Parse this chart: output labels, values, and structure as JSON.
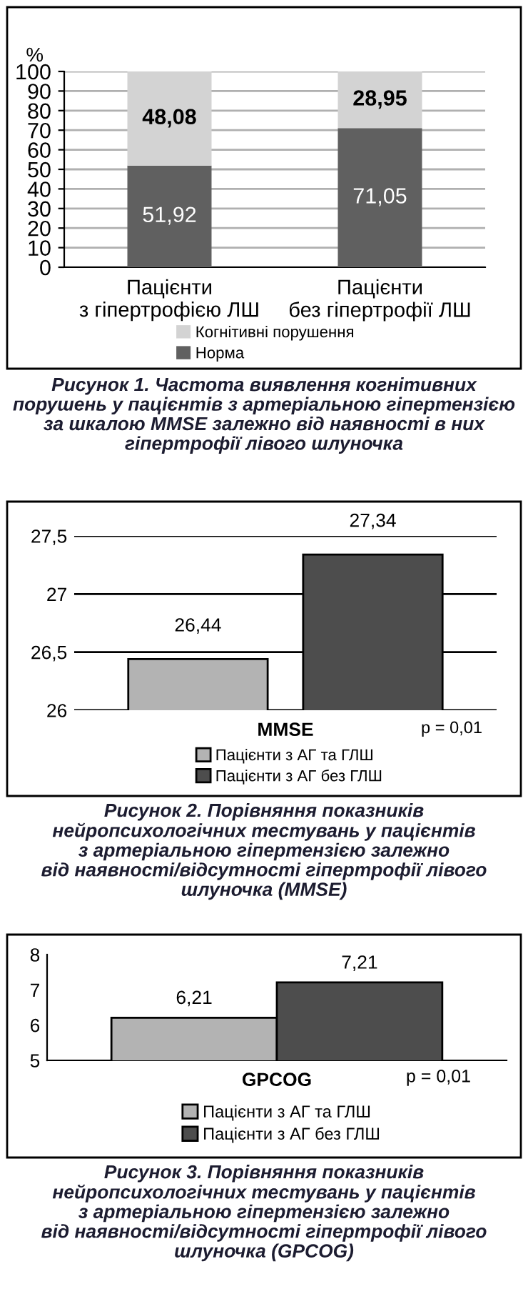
{
  "chart_data": [
    {
      "type": "bar",
      "stacked": true,
      "title": "Рисунок 1. Частота виявлення когнітивних\nпорушень у пацієнтів з артеріальною гіпертензією\nза шкалою MMSE залежно від наявності в них\nгіпертрофії лівого шлуночка",
      "ylabel": "%",
      "categories": [
        "Пацієнти\nз гіпертрофією ЛШ",
        "Пацієнти\nбез гіпертрофії ЛШ"
      ],
      "series": [
        {
          "name": "Норма",
          "color": "#606060",
          "values": [
            51.92,
            71.05
          ],
          "value_labels": [
            "51,92",
            "71,05"
          ]
        },
        {
          "name": "Когнітивні порушення",
          "color": "#d3d3d3",
          "values": [
            48.08,
            28.95
          ],
          "value_labels": [
            "48,08",
            "28,95"
          ]
        }
      ],
      "ylim": [
        0,
        100
      ],
      "yticks": [
        0,
        10,
        20,
        30,
        40,
        50,
        60,
        70,
        80,
        90,
        100
      ],
      "grid": "y",
      "legend": "bottom"
    },
    {
      "type": "bar",
      "title": "Рисунок 2. Порівняння показників\nнейропсихологічних тестувань у пацієнтів\nз артеріальною гіпертензією залежно\nвід наявності/відсутності гіпертрофії лівого\nшлуночка (MMSE)",
      "categories": [
        "MMSE"
      ],
      "series": [
        {
          "name": "Пацієнти з АГ та ГЛШ",
          "color": "#b3b3b3",
          "values": [
            26.44
          ],
          "value_labels": [
            "26,44"
          ]
        },
        {
          "name": "Пацієнти з АГ без ГЛШ",
          "color": "#4d4d4d",
          "values": [
            27.34
          ],
          "value_labels": [
            "27,34"
          ]
        }
      ],
      "ylim": [
        26,
        27.5
      ],
      "yticks": [
        26,
        {
          "value": 26.5,
          "label": "26,5"
        },
        27,
        {
          "value": 27.5,
          "label": "27,5"
        }
      ],
      "grid": "y",
      "legend": "bottom",
      "annotations": [
        "p = 0,01"
      ]
    },
    {
      "type": "bar",
      "title": "Рисунок 3. Порівняння показників\nнейропсихологічних тестувань у пацієнтів\nз артеріальною гіпертензією залежно\nвід наявності/відсутності гіпертрофії лівого\nшлуночка (GPCOG)",
      "categories": [
        "GPCOG"
      ],
      "series": [
        {
          "name": "Пацієнти з АГ та ГЛШ",
          "color": "#b3b3b3",
          "values": [
            6.21
          ],
          "value_labels": [
            "6,21"
          ]
        },
        {
          "name": "Пацієнти з АГ без ГЛШ",
          "color": "#4d4d4d",
          "values": [
            7.21
          ],
          "value_labels": [
            "7,21"
          ]
        }
      ],
      "ylim": [
        5,
        8
      ],
      "yticks": [
        5,
        6,
        7,
        8
      ],
      "legend": "bottom",
      "annotations": [
        "p = 0,01"
      ]
    }
  ]
}
